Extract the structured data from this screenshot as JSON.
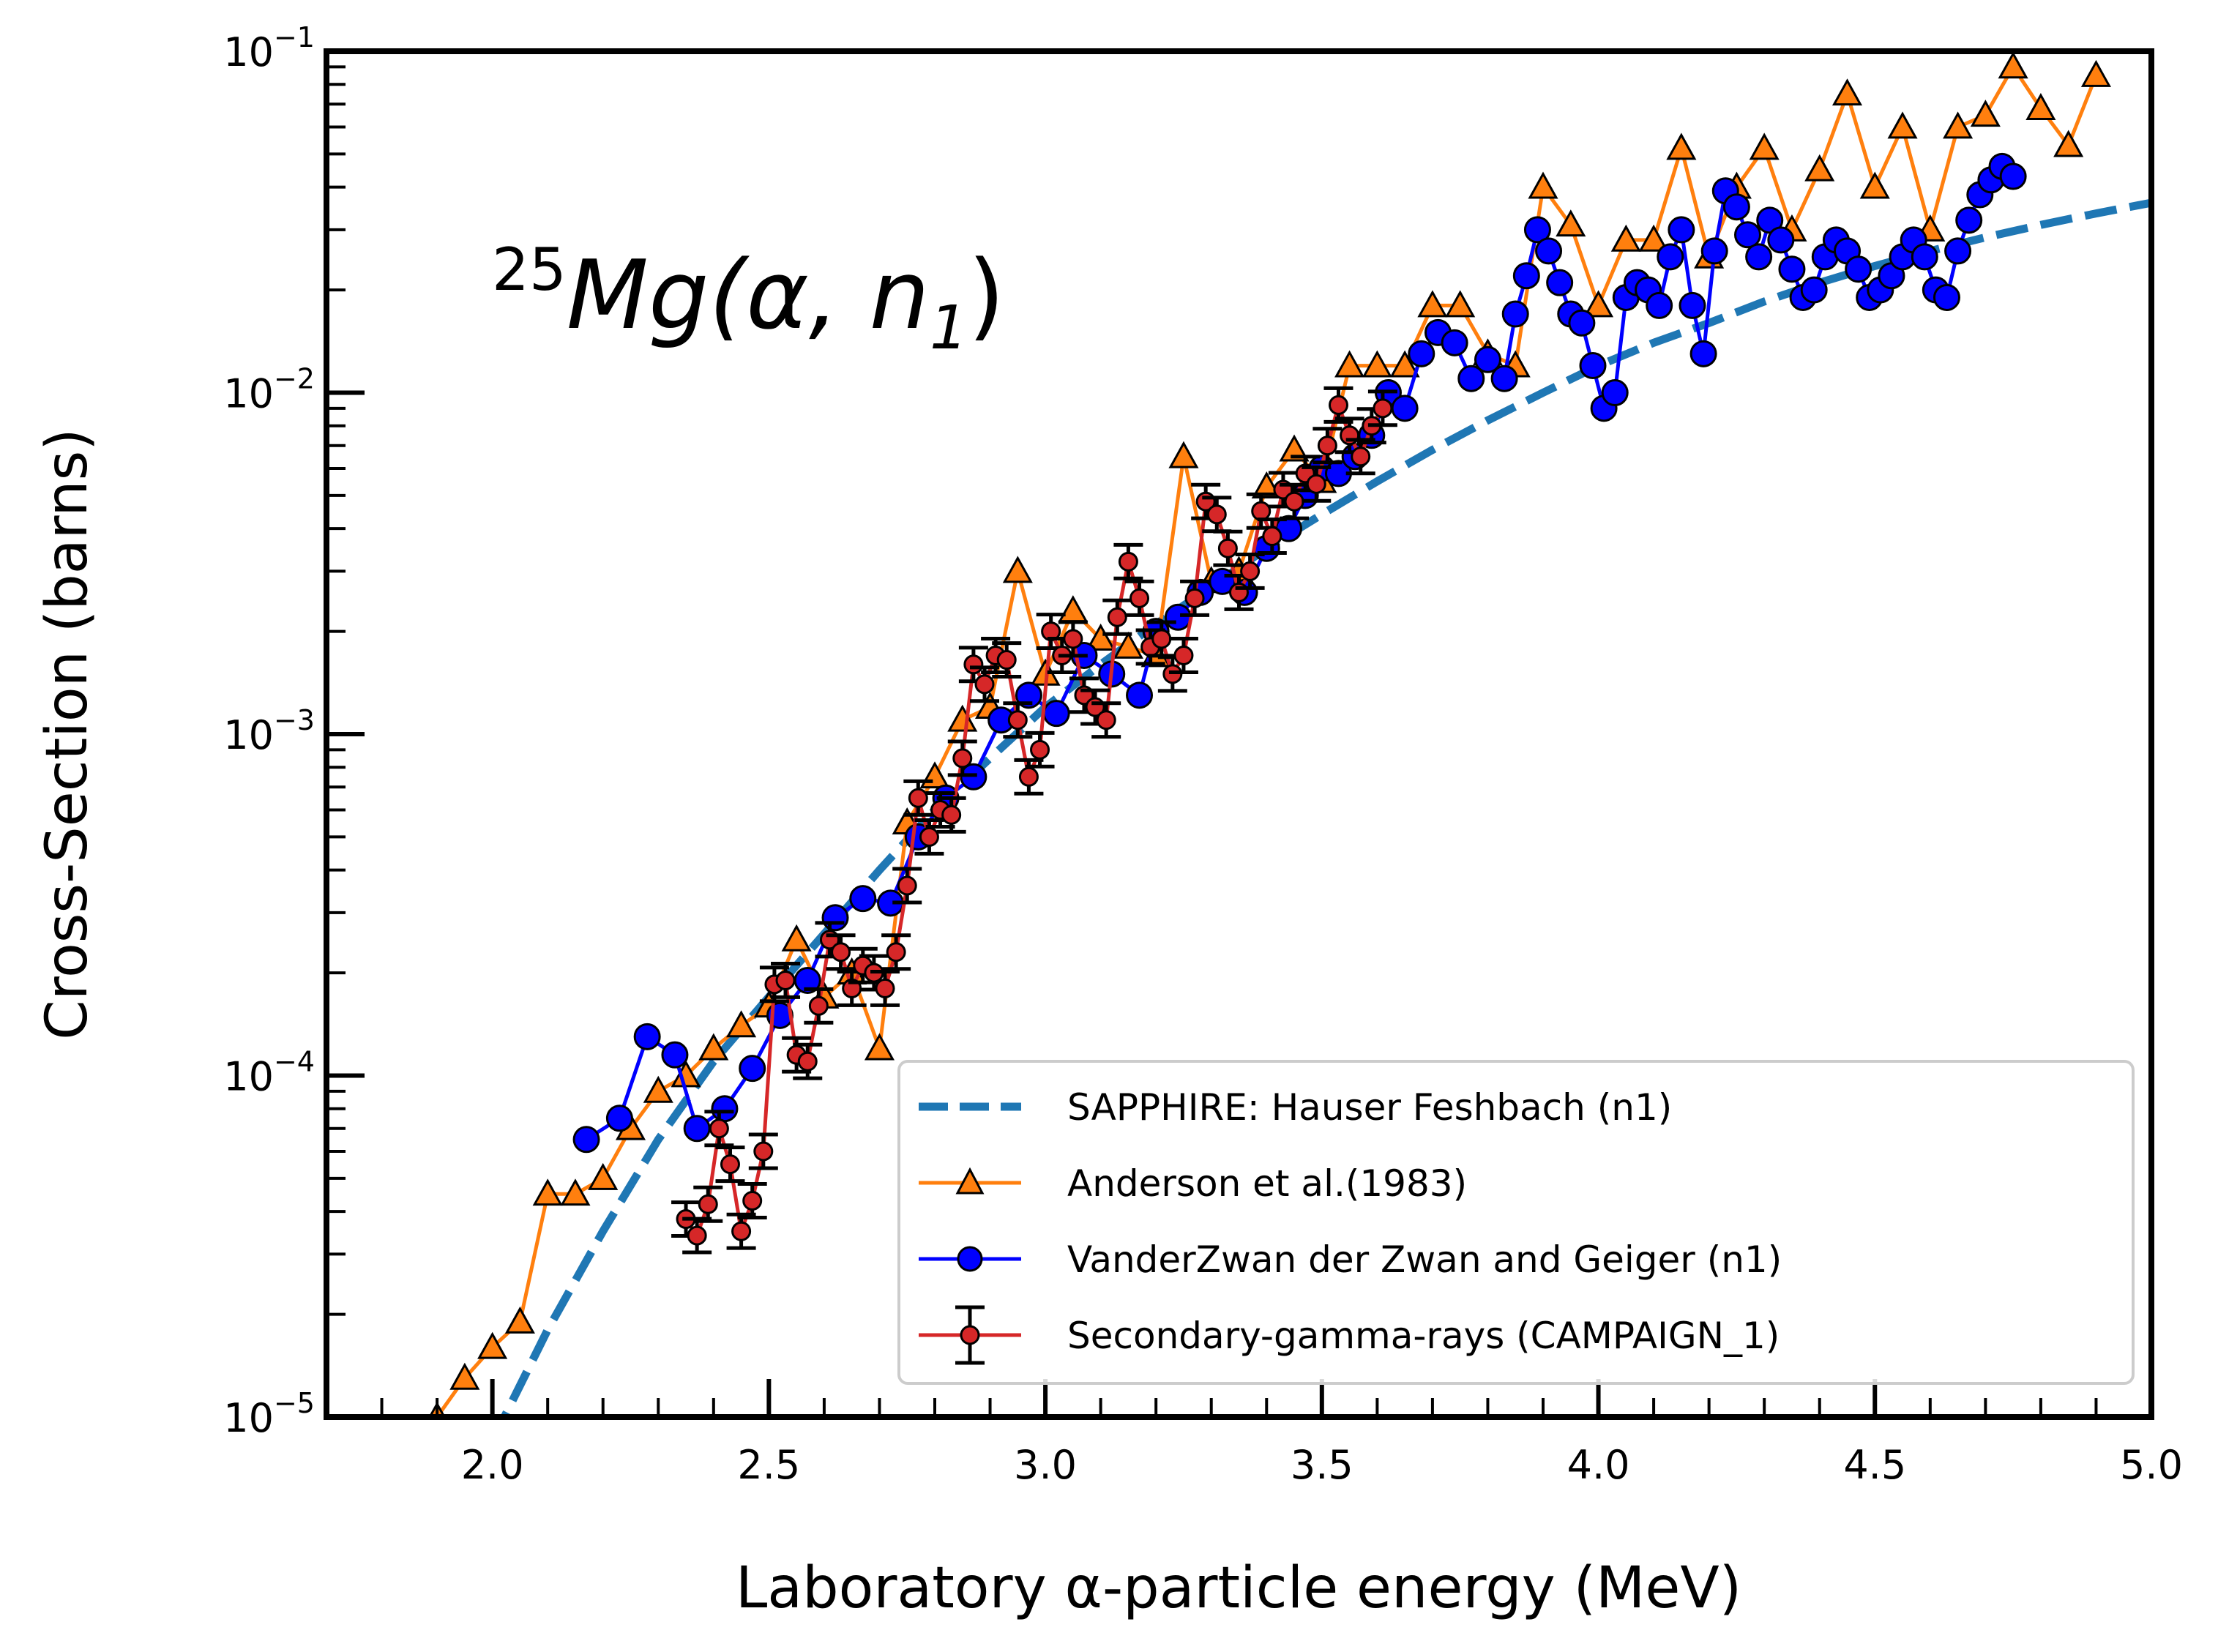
{
  "chart_data": {
    "type": "line",
    "title": "",
    "annotation": {
      "mass": "25",
      "rest": "Mg(α, n",
      "sub": "1",
      "close": ")"
    },
    "xlabel": "Laboratory α-particle energy (MeV)",
    "ylabel": "Cross-Section (barns)",
    "xlim": [
      1.7,
      5.0
    ],
    "ylim": [
      1e-05,
      0.1
    ],
    "yscale": "log",
    "grid": false,
    "legend_position": "lower-right",
    "x_ticks": [
      "2.0",
      "2.5",
      "3.0",
      "3.5",
      "4.0",
      "4.5",
      "5.0"
    ],
    "y_ticks": [
      {
        "base": "10",
        "exp": "−5"
      },
      {
        "base": "10",
        "exp": "−4"
      },
      {
        "base": "10",
        "exp": "−3"
      },
      {
        "base": "10",
        "exp": "−2"
      },
      {
        "base": "10",
        "exp": "−1"
      }
    ],
    "series": [
      {
        "name": "SAPPHIRE: Hauser Feshbach (n1)",
        "style": "dashed",
        "color": "#1f77b4",
        "x": [
          2.0,
          2.1,
          2.2,
          2.3,
          2.4,
          2.5,
          2.6,
          2.7,
          2.8,
          2.9,
          3.0,
          3.1,
          3.2,
          3.3,
          3.4,
          3.5,
          3.6,
          3.7,
          3.8,
          3.9,
          4.0,
          4.1,
          4.2,
          4.3,
          4.4,
          4.5,
          4.6,
          4.7,
          4.8,
          4.9,
          5.0
        ],
        "y": [
          8.5e-06,
          1.8e-05,
          3.5e-05,
          6.5e-05,
          0.00011,
          0.00017,
          0.00026,
          0.0004,
          0.0006,
          0.00085,
          0.0012,
          0.0016,
          0.0021,
          0.0027,
          0.0035,
          0.0044,
          0.0055,
          0.0068,
          0.0083,
          0.01,
          0.012,
          0.014,
          0.016,
          0.0185,
          0.021,
          0.0235,
          0.026,
          0.0285,
          0.031,
          0.0335,
          0.036
        ]
      },
      {
        "name": "Anderson et al.(1983)",
        "style": "line-triangle",
        "color": "#ff7f0e",
        "x": [
          1.9,
          1.95,
          2.0,
          2.05,
          2.1,
          2.15,
          2.2,
          2.25,
          2.3,
          2.35,
          2.4,
          2.45,
          2.5,
          2.55,
          2.6,
          2.65,
          2.7,
          2.75,
          2.8,
          2.85,
          2.9,
          2.95,
          3.0,
          3.05,
          3.1,
          3.15,
          3.2,
          3.25,
          3.3,
          3.35,
          3.4,
          3.45,
          3.5,
          3.55,
          3.6,
          3.65,
          3.7,
          3.75,
          3.8,
          3.85,
          3.9,
          3.95,
          4.0,
          4.05,
          4.1,
          4.15,
          4.2,
          4.25,
          4.3,
          4.35,
          4.4,
          4.45,
          4.5,
          4.55,
          4.6,
          4.65,
          4.7,
          4.75,
          4.8,
          4.85,
          4.9
        ],
        "y": [
          1e-05,
          1.3e-05,
          1.6e-05,
          1.9e-05,
          4.5e-05,
          4.5e-05,
          5e-05,
          7e-05,
          9e-05,
          0.0001,
          0.00012,
          0.00014,
          0.00016,
          0.00025,
          0.00017,
          0.0002,
          0.00012,
          0.00055,
          0.00075,
          0.0011,
          0.0012,
          0.003,
          0.0015,
          0.0023,
          0.0019,
          0.0018,
          0.0017,
          0.0065,
          0.0028,
          0.003,
          0.0053,
          0.0068,
          0.0055,
          0.012,
          0.012,
          0.012,
          0.018,
          0.018,
          0.013,
          0.012,
          0.04,
          0.031,
          0.018,
          0.028,
          0.028,
          0.052,
          0.025,
          0.04,
          0.052,
          0.03,
          0.045,
          0.075,
          0.04,
          0.06,
          0.03,
          0.06,
          0.065,
          0.09,
          0.068,
          0.053,
          0.085
        ]
      },
      {
        "name": "VanderZwan der Zwan and Geiger (n1)",
        "style": "line-circle",
        "color": "#0000ff",
        "x": [
          2.17,
          2.23,
          2.28,
          2.33,
          2.37,
          2.42,
          2.47,
          2.52,
          2.57,
          2.62,
          2.67,
          2.72,
          2.77,
          2.82,
          2.87,
          2.92,
          2.97,
          3.02,
          3.07,
          3.12,
          3.17,
          3.2,
          3.24,
          3.28,
          3.32,
          3.36,
          3.4,
          3.44,
          3.47,
          3.5,
          3.53,
          3.56,
          3.59,
          3.62,
          3.65,
          3.68,
          3.71,
          3.74,
          3.77,
          3.8,
          3.83,
          3.85,
          3.87,
          3.89,
          3.91,
          3.93,
          3.95,
          3.97,
          3.99,
          4.01,
          4.03,
          4.05,
          4.07,
          4.09,
          4.11,
          4.13,
          4.15,
          4.17,
          4.19,
          4.21,
          4.23,
          4.25,
          4.27,
          4.29,
          4.31,
          4.33,
          4.35,
          4.37,
          4.39,
          4.41,
          4.43,
          4.45,
          4.47,
          4.49,
          4.51,
          4.53,
          4.55,
          4.57,
          4.59,
          4.61,
          4.63,
          4.65,
          4.67,
          4.69,
          4.71,
          4.73,
          4.75
        ],
        "y": [
          6.5e-05,
          7.5e-05,
          0.00013,
          0.000115,
          7e-05,
          8e-05,
          0.000105,
          0.00015,
          0.00019,
          0.00029,
          0.00033,
          0.00032,
          0.0005,
          0.00065,
          0.00075,
          0.0011,
          0.0013,
          0.00115,
          0.0017,
          0.0015,
          0.0013,
          0.002,
          0.0022,
          0.0026,
          0.0028,
          0.0026,
          0.0035,
          0.004,
          0.005,
          0.006,
          0.0058,
          0.0065,
          0.0075,
          0.01,
          0.009,
          0.013,
          0.015,
          0.014,
          0.011,
          0.0125,
          0.011,
          0.017,
          0.022,
          0.03,
          0.026,
          0.021,
          0.017,
          0.016,
          0.012,
          0.009,
          0.01,
          0.019,
          0.021,
          0.02,
          0.018,
          0.025,
          0.03,
          0.018,
          0.013,
          0.026,
          0.039,
          0.035,
          0.029,
          0.025,
          0.032,
          0.028,
          0.023,
          0.019,
          0.02,
          0.025,
          0.028,
          0.026,
          0.023,
          0.019,
          0.02,
          0.022,
          0.025,
          0.028,
          0.025,
          0.02,
          0.019,
          0.026,
          0.032,
          0.038,
          0.042,
          0.046,
          0.043
        ]
      },
      {
        "name": "Secondary-gamma-rays (CAMPAIGN_1)",
        "style": "line-circle-errorbar",
        "color": "#d62728",
        "x": [
          2.35,
          2.37,
          2.39,
          2.41,
          2.43,
          2.45,
          2.47,
          2.49,
          2.51,
          2.53,
          2.55,
          2.57,
          2.59,
          2.61,
          2.63,
          2.65,
          2.67,
          2.69,
          2.71,
          2.73,
          2.75,
          2.77,
          2.79,
          2.81,
          2.83,
          2.85,
          2.87,
          2.89,
          2.91,
          2.93,
          2.95,
          2.97,
          2.99,
          3.01,
          3.03,
          3.05,
          3.07,
          3.09,
          3.11,
          3.13,
          3.15,
          3.17,
          3.19,
          3.21,
          3.23,
          3.25,
          3.27,
          3.29,
          3.31,
          3.33,
          3.35,
          3.37,
          3.39,
          3.41,
          3.43,
          3.45,
          3.47,
          3.49,
          3.51,
          3.53,
          3.55,
          3.57,
          3.59,
          3.61
        ],
        "y": [
          3.8e-05,
          3.4e-05,
          4.2e-05,
          7e-05,
          5.5e-05,
          3.5e-05,
          4.3e-05,
          6e-05,
          0.000185,
          0.00019,
          0.000115,
          0.00011,
          0.00016,
          0.00025,
          0.00023,
          0.00018,
          0.00021,
          0.0002,
          0.00018,
          0.00023,
          0.00036,
          0.00065,
          0.0005,
          0.0006,
          0.00058,
          0.00085,
          0.0016,
          0.0014,
          0.0017,
          0.00165,
          0.0011,
          0.00075,
          0.0009,
          0.002,
          0.0017,
          0.0019,
          0.0013,
          0.0012,
          0.0011,
          0.0022,
          0.0032,
          0.0025,
          0.0018,
          0.0019,
          0.0015,
          0.0017,
          0.0025,
          0.0048,
          0.0044,
          0.0035,
          0.0026,
          0.003,
          0.0045,
          0.0038,
          0.0052,
          0.0048,
          0.0058,
          0.0054,
          0.007,
          0.0092,
          0.0075,
          0.0065,
          0.008,
          0.009
        ]
      }
    ]
  }
}
